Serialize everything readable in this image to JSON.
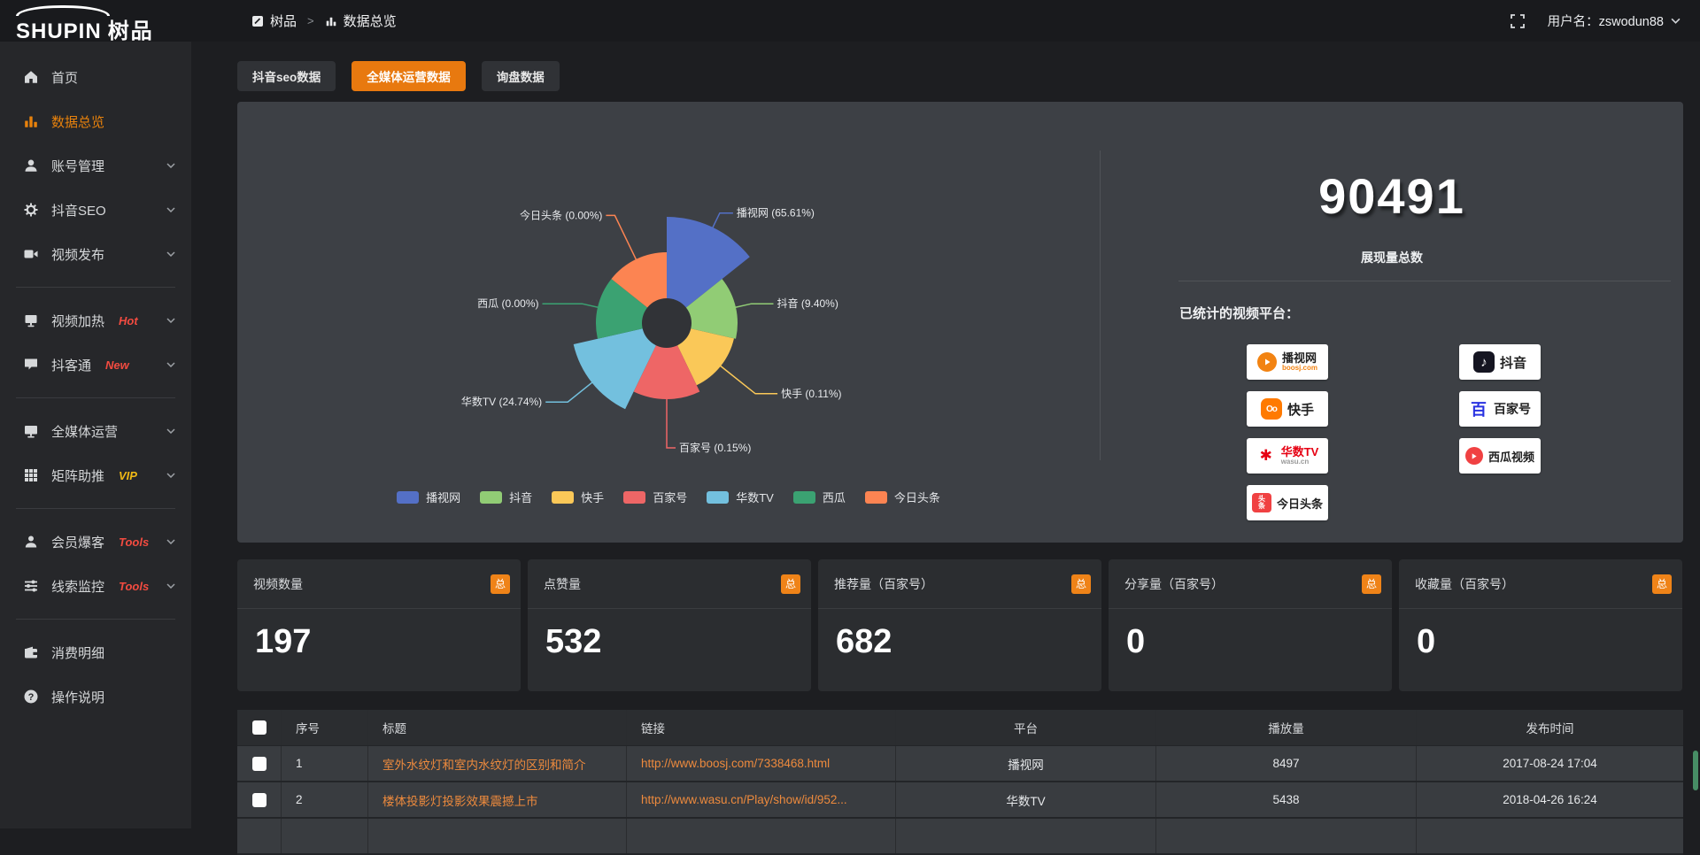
{
  "topbar": {
    "logo_en": "SHUPIN",
    "logo_cn": "树品",
    "breadcrumb": {
      "home": "树品",
      "separator": ">",
      "current": "数据总览"
    },
    "username": "用户名：zswodun88"
  },
  "sidebar": {
    "items": [
      {
        "label": "首页",
        "icon": "home-icon"
      },
      {
        "label": "数据总览",
        "icon": "bar-chart-icon",
        "active": true
      },
      {
        "label": "账号管理",
        "icon": "user-icon",
        "chevron": true
      },
      {
        "label": "抖音SEO",
        "icon": "gear-icon",
        "chevron": true
      },
      {
        "label": "视频发布",
        "icon": "video-camera-icon",
        "chevron": true
      },
      {
        "label": "视频加热",
        "icon": "screen-icon",
        "badge": "Hot",
        "chevron": true
      },
      {
        "label": "抖客通",
        "icon": "chat-icon",
        "badge": "New",
        "chevron": true
      },
      {
        "label": "全媒体运营",
        "icon": "monitor-icon",
        "chevron": true
      },
      {
        "label": "矩阵助推",
        "icon": "grid-icon",
        "badge": "VIP",
        "chevron": true
      },
      {
        "label": "会员爆客",
        "icon": "member-icon",
        "badge": "Tools",
        "chevron": true
      },
      {
        "label": "线索监控",
        "icon": "sliders-icon",
        "badge": "Tools",
        "chevron": true
      },
      {
        "label": "消费明细",
        "icon": "wallet-icon"
      },
      {
        "label": "操作说明",
        "icon": "help-icon"
      }
    ]
  },
  "tabs": {
    "items": [
      {
        "label": "抖音seo数据"
      },
      {
        "label": "全媒体运营数据",
        "active": true
      },
      {
        "label": "询盘数据"
      }
    ]
  },
  "chart_data": {
    "type": "pie",
    "rose_type": true,
    "inner_radius": 28,
    "start_angle_deg": 0,
    "equal_angles": true,
    "legend_position": "bottom",
    "slices": [
      {
        "label": "播视网",
        "percent": 65.61,
        "color": "#5470c6",
        "radius": 120
      },
      {
        "label": "抖音",
        "percent": 9.4,
        "color": "#91cc75",
        "radius": 80
      },
      {
        "label": "快手",
        "percent": 0.11,
        "color": "#fac858",
        "radius": 78
      },
      {
        "label": "百家号",
        "percent": 0.15,
        "color": "#ee6666",
        "radius": 86
      },
      {
        "label": "华数TV",
        "percent": 24.74,
        "color": "#73c0de",
        "radius": 108
      },
      {
        "label": "西瓜",
        "percent": 0.0,
        "color": "#3ba272",
        "radius": 80
      },
      {
        "label": "今日头条",
        "percent": 0.0,
        "color": "#fc8452",
        "radius": 80
      }
    ]
  },
  "summary": {
    "total_value": "90491",
    "total_label": "展现量总数",
    "platforms_label": "已统计的视频平台：",
    "platforms": [
      {
        "name": "播视网",
        "sub": "boosj.com"
      },
      {
        "name": "抖音"
      },
      {
        "name": "快手"
      },
      {
        "name": "百家号"
      },
      {
        "name": "华数TV",
        "sub": "wasu.cn"
      },
      {
        "name": "西瓜视频"
      },
      {
        "name": "今日头条"
      }
    ]
  },
  "stat_cards": [
    {
      "title": "视频数量",
      "value": "197",
      "badge": "总"
    },
    {
      "title": "点赞量",
      "value": "532",
      "badge": "总"
    },
    {
      "title": "推荐量（百家号）",
      "value": "682",
      "badge": "总"
    },
    {
      "title": "分享量（百家号）",
      "value": "0",
      "badge": "总"
    },
    {
      "title": "收藏量（百家号）",
      "value": "0",
      "badge": "总"
    }
  ],
  "table": {
    "headers": [
      "序号",
      "标题",
      "链接",
      "平台",
      "播放量",
      "发布时间"
    ],
    "rows": [
      {
        "no": "1",
        "title": "室外水纹灯和室内水纹灯的区别和简介",
        "link": "http://www.boosj.com/7338468.html",
        "platform": "播视网",
        "plays": "8497",
        "time": "2017-08-24 17:04"
      },
      {
        "no": "2",
        "title": "楼体投影灯投影效果震撼上市",
        "link": "http://www.wasu.cn/Play/show/id/952...",
        "platform": "华数TV",
        "plays": "5438",
        "time": "2018-04-26 16:24"
      }
    ]
  },
  "colors": {
    "accent_orange": "#e8790f",
    "badge_orange": "#ef8318",
    "link_orange": "#ed8a3d",
    "hot_red": "#f24b40",
    "vip_yellow": "#f0b915"
  }
}
